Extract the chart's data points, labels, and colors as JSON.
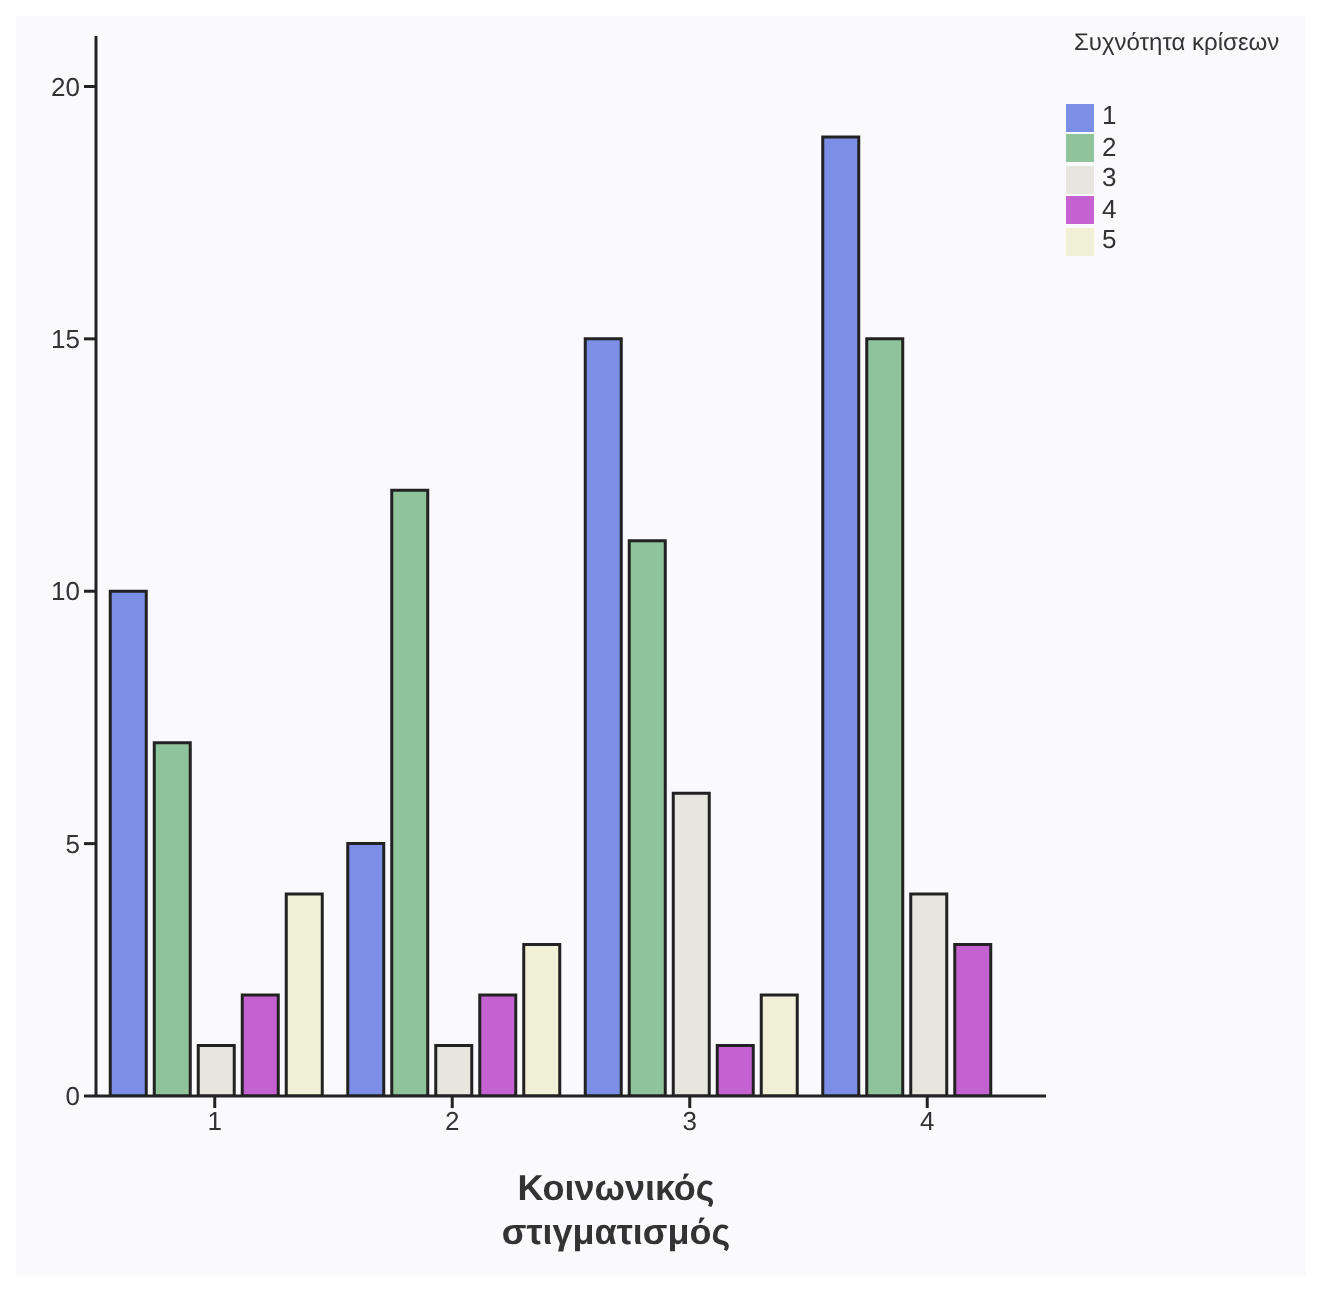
{
  "chart_data": {
    "type": "bar",
    "xlabel": "Κοινωνικός στιγματισμός",
    "legend_title": "Συχνότητα κρίσεων",
    "categories": [
      "1",
      "2",
      "3",
      "4"
    ],
    "series": [
      {
        "name": "1",
        "color": "#7b8fe6",
        "values": [
          10,
          5,
          15,
          19
        ]
      },
      {
        "name": "2",
        "color": "#8fc49a",
        "values": [
          7,
          12,
          11,
          15
        ]
      },
      {
        "name": "3",
        "color": "#e6e6de",
        "values": [
          1,
          1,
          6,
          4
        ]
      },
      {
        "name": "4",
        "color": "#c462d2",
        "values": [
          2,
          2,
          1,
          3
        ]
      },
      {
        "name": "5",
        "color": "#f0f0d6",
        "values": [
          4,
          3,
          2,
          null
        ]
      }
    ],
    "ylim": [
      0,
      21
    ],
    "yticks": [
      0,
      5,
      10,
      15,
      20
    ],
    "grid": false,
    "legend": "top right"
  }
}
